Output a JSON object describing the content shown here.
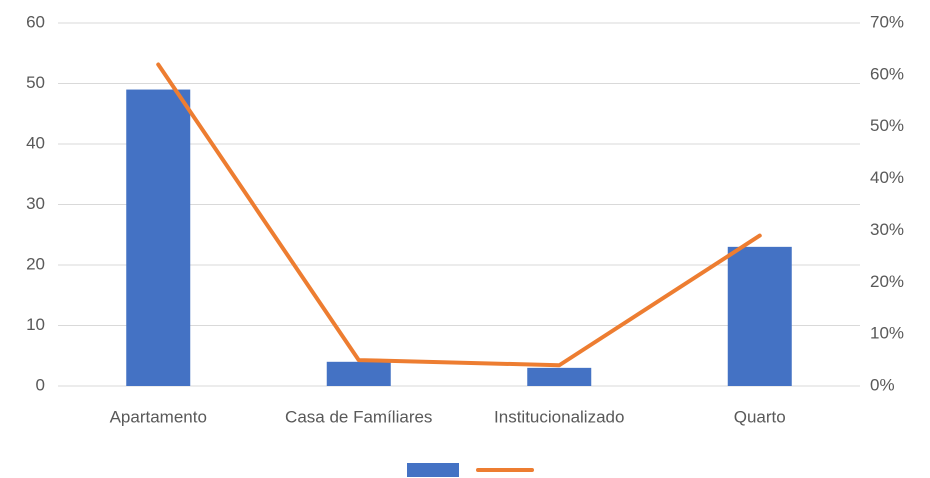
{
  "chart_data": {
    "type": "bar_line",
    "categories": [
      "Apartamento",
      "Casa de Famíliares",
      "Institucionalizado",
      "Quarto"
    ],
    "series": [
      {
        "type": "bar",
        "color": "#4472c4",
        "values": [
          49,
          4,
          3,
          23
        ]
      },
      {
        "type": "line",
        "axis": "y2",
        "color": "#ed7d31",
        "values": [
          62,
          5,
          4,
          29
        ]
      }
    ],
    "ylim": [
      0,
      60
    ],
    "yticks": [
      0,
      10,
      20,
      30,
      40,
      50,
      60
    ],
    "y2lim": [
      0,
      70
    ],
    "y2ticks": [
      {
        "value": 0,
        "label": "0%"
      },
      {
        "value": 10,
        "label": "10%"
      },
      {
        "value": 20,
        "label": "20%"
      },
      {
        "value": 30,
        "label": "30%"
      },
      {
        "value": 40,
        "label": "40%"
      },
      {
        "value": 50,
        "label": "50%"
      },
      {
        "value": 60,
        "label": "60%"
      },
      {
        "value": 70,
        "label": "70%"
      }
    ],
    "grid": true
  }
}
